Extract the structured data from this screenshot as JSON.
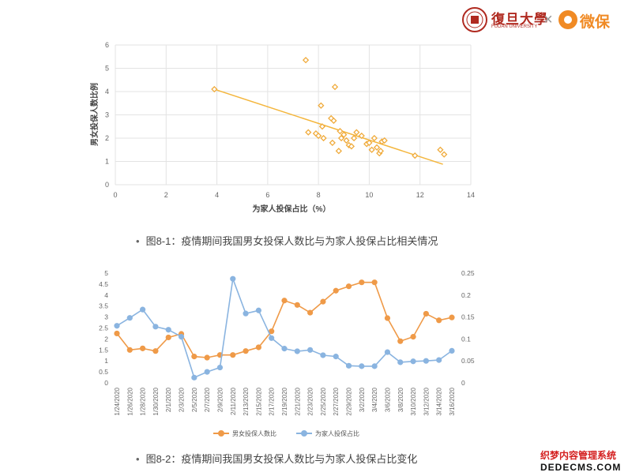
{
  "logos": {
    "fudan_name": "復旦大學",
    "fudan_english": "FUDAN UNIVERSITY",
    "separator": "×",
    "weibao_name": "微保"
  },
  "captions": {
    "bullet": "•",
    "fig1": "图8-1：疫情期间我国男女投保人数比与为家人投保占比相关情况",
    "fig2": "图8-2：疫情期间我国男女投保人数比与为家人投保占比变化"
  },
  "watermark": {
    "line1": "织梦内容管理系统",
    "line2": "DEDECMS.COM"
  },
  "colors": {
    "orange": "#f0ab3c",
    "orange_line": "#f4b63d",
    "blue": "#8ab4e0",
    "axis_text": "#666666",
    "grid": "#e3e3e3"
  },
  "chart_data": [
    {
      "type": "scatter",
      "title": "",
      "xlabel": "为家人投保占比（%）",
      "ylabel": "男女投保人数比例",
      "xlim": [
        0,
        14
      ],
      "ylim": [
        0,
        6
      ],
      "x_ticks": [
        "0",
        "2",
        "4",
        "6",
        "8",
        "10",
        "12",
        "14"
      ],
      "y_ticks": [
        "0",
        "1",
        "2",
        "3",
        "4",
        "5",
        "6"
      ],
      "grid": "y",
      "trendline": {
        "x": [
          3.9,
          12.9
        ],
        "y": [
          4.1,
          0.88
        ]
      },
      "points": [
        [
          3.9,
          4.1
        ],
        [
          7.5,
          5.35
        ],
        [
          7.6,
          2.25
        ],
        [
          7.9,
          2.2
        ],
        [
          8.0,
          2.1
        ],
        [
          8.1,
          3.4
        ],
        [
          8.15,
          2.5
        ],
        [
          8.2,
          2.0
        ],
        [
          8.5,
          2.85
        ],
        [
          8.55,
          1.8
        ],
        [
          8.6,
          2.75
        ],
        [
          8.65,
          4.2
        ],
        [
          8.8,
          1.45
        ],
        [
          8.85,
          2.3
        ],
        [
          8.9,
          2.0
        ],
        [
          9.0,
          2.15
        ],
        [
          9.1,
          1.9
        ],
        [
          9.2,
          1.7
        ],
        [
          9.3,
          1.65
        ],
        [
          9.4,
          2.0
        ],
        [
          9.5,
          2.25
        ],
        [
          9.7,
          2.1
        ],
        [
          9.9,
          1.75
        ],
        [
          10.0,
          1.8
        ],
        [
          10.1,
          1.5
        ],
        [
          10.2,
          2.0
        ],
        [
          10.3,
          1.6
        ],
        [
          10.4,
          1.35
        ],
        [
          10.45,
          1.45
        ],
        [
          10.5,
          1.85
        ],
        [
          10.6,
          1.9
        ],
        [
          11.8,
          1.25
        ],
        [
          12.8,
          1.5
        ],
        [
          12.95,
          1.3
        ]
      ]
    },
    {
      "type": "line",
      "title": "",
      "categories": [
        "1/24/2020",
        "1/26/2020",
        "1/28/2020",
        "1/30/2020",
        "2/1/2020",
        "2/3/2020",
        "2/5/2020",
        "2/7/2020",
        "2/9/2020",
        "2/11/2020",
        "2/13/2020",
        "2/15/2020",
        "2/17/2020",
        "2/19/2020",
        "2/21/2020",
        "2/23/2020",
        "2/25/2020",
        "2/27/2020",
        "2/29/2020",
        "3/2/2020",
        "3/4/2020",
        "3/6/2020",
        "3/8/2020",
        "3/10/2020",
        "3/12/2020",
        "3/14/2020",
        "3/16/2020"
      ],
      "y_left": {
        "lim": [
          0,
          5
        ],
        "ticks": [
          "0",
          "0.5",
          "1",
          "1.5",
          "2",
          "2.5",
          "3",
          "3.5",
          "4",
          "4.5",
          "5"
        ]
      },
      "y_right": {
        "lim": [
          0,
          0.25
        ],
        "ticks": [
          "0",
          "0.05",
          "0.1",
          "0.15",
          "0.2",
          "0.25"
        ]
      },
      "legend_position": "bottom",
      "series": [
        {
          "name": "男女投保人数比",
          "axis": "left",
          "color": "#ef9a48",
          "values": [
            2.25,
            1.5,
            1.57,
            1.45,
            2.07,
            2.23,
            1.2,
            1.15,
            1.27,
            1.27,
            1.45,
            1.62,
            2.35,
            3.75,
            3.55,
            3.2,
            3.7,
            4.2,
            4.4,
            4.58,
            4.58,
            2.95,
            1.9,
            2.1,
            3.15,
            2.85,
            2.98
          ]
        },
        {
          "name": "为家人投保占比",
          "axis": "right",
          "color": "#8ab4e0",
          "values": [
            0.13,
            0.148,
            0.167,
            0.128,
            0.121,
            0.105,
            0.012,
            0.025,
            0.035,
            0.237,
            0.158,
            0.165,
            0.102,
            0.078,
            0.072,
            0.075,
            0.063,
            0.06,
            0.039,
            0.038,
            0.038,
            0.07,
            0.047,
            0.049,
            0.05,
            0.052,
            0.073
          ]
        }
      ]
    }
  ]
}
